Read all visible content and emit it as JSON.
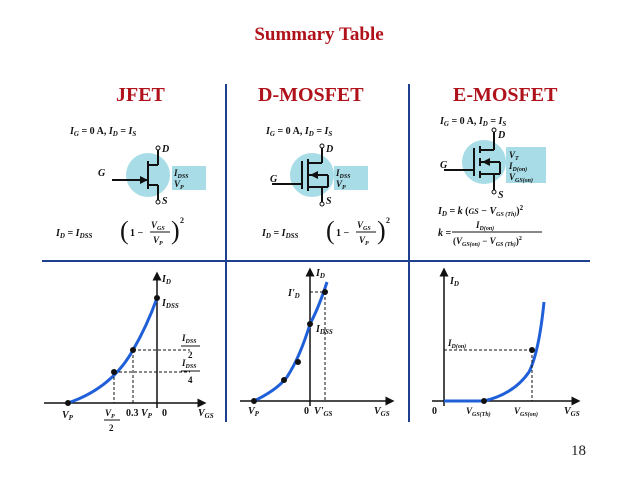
{
  "title": "Summary Table",
  "columns": [
    {
      "heading": "JFET",
      "condition": "I_G = 0 A, I_D = I_S",
      "terminals": {
        "drain": "D",
        "gate": "G",
        "source": "S"
      },
      "params": [
        "I_DSS",
        "V_P"
      ],
      "equation": "I_D = I_DSS (1 − V_GS / V_P)^2",
      "graph": {
        "y_axis": "I_D",
        "x_axis": "V_GS",
        "y_labels": [
          "I_DSS",
          "I_DSS/2",
          "I_DSS/4"
        ],
        "x_labels": [
          "V_P",
          "V_P/2",
          "0.3 V_P",
          "0"
        ]
      }
    },
    {
      "heading": "D-MOSFET",
      "condition": "I_G = 0 A, I_D = I_S",
      "terminals": {
        "drain": "D",
        "gate": "G",
        "source": "S"
      },
      "params": [
        "I_DSS",
        "V_P"
      ],
      "equation": "I_D = I_DSS (1 − V_GS / V_P)^2",
      "graph": {
        "y_axis": "I_D",
        "x_axis": "V_GS",
        "y_labels": [
          "I'_D",
          "I_DSS"
        ],
        "x_labels": [
          "V_P",
          "0",
          "V'_GS"
        ]
      }
    },
    {
      "heading": "E-MOSFET",
      "condition": "I_G = 0 A, I_D = I_S",
      "terminals": {
        "drain": "D",
        "gate": "G",
        "source": "S"
      },
      "params": [
        "V_T",
        "I_D(on)",
        "V_GS(on)"
      ],
      "equation": "I_D = k (V_GS − V_GS(Th))^2",
      "equation2": "k = I_D(on) / (V_GS(on) − V_GS(Th))^2",
      "graph": {
        "y_axis": "I_D",
        "x_axis": "V_GS",
        "y_labels": [
          "I_D(on)"
        ],
        "x_labels": [
          "0",
          "V_GS(Th)",
          "V_GS(on)"
        ]
      }
    }
  ],
  "slide_number": "18",
  "colors": {
    "heading": "#b0121b",
    "divider": "#1f3f8f",
    "device_fill": "#a8dde7",
    "curve": "#1f5fd8"
  }
}
